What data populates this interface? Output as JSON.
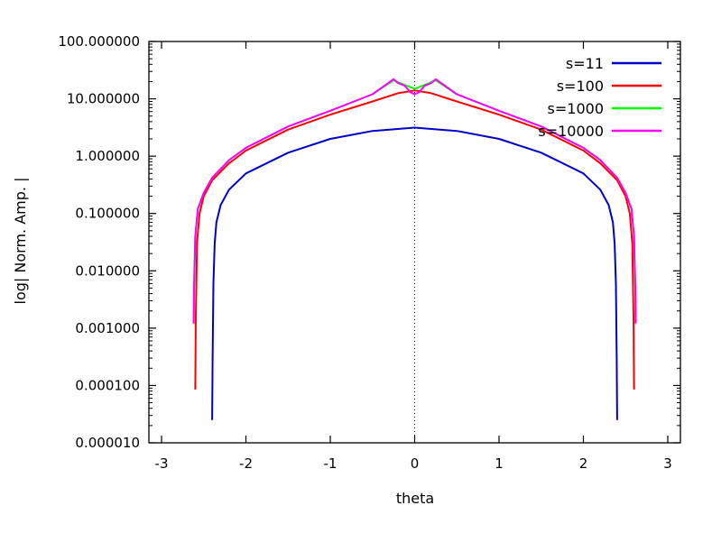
{
  "chart_data": {
    "type": "line",
    "title": "",
    "xlabel": "theta",
    "ylabel": "log| Norm. Amp. |",
    "xlim": [
      -3.15,
      3.15
    ],
    "ylim": [
      1e-05,
      100
    ],
    "yscale": "log",
    "x_ticks": [
      "-3",
      "-2",
      "-1",
      "0",
      "1",
      "2",
      "3"
    ],
    "y_ticks": [
      "0.000010",
      "0.000100",
      "0.001000",
      "0.010000",
      "0.100000",
      "1.000000",
      "10.000000",
      "100.000000"
    ],
    "zero_line": {
      "x": 0,
      "style": "dotted"
    },
    "grid": false,
    "legend_position": "top-right",
    "series": [
      {
        "name": "s=11",
        "color": "#0000cc",
        "x": [
          -2.4,
          -2.395,
          -2.385,
          -2.37,
          -2.35,
          -2.3,
          -2.2,
          -2.0,
          -1.5,
          -1.0,
          -0.5,
          0.0,
          0.5,
          1.0,
          1.5,
          2.0,
          2.2,
          2.3,
          2.35,
          2.37,
          2.385,
          2.395,
          2.4
        ],
        "y": [
          2.5e-05,
          0.0003,
          0.006,
          0.03,
          0.07,
          0.14,
          0.26,
          0.5,
          1.15,
          2.0,
          2.75,
          3.15,
          2.75,
          2.0,
          1.15,
          0.5,
          0.26,
          0.14,
          0.07,
          0.03,
          0.006,
          0.0003,
          2.5e-05
        ]
      },
      {
        "name": "s=100",
        "color": "#ff0000",
        "x": [
          -2.6,
          -2.595,
          -2.58,
          -2.55,
          -2.5,
          -2.4,
          -2.2,
          -2.0,
          -1.5,
          -1.0,
          -0.5,
          -0.2,
          0.0,
          0.2,
          0.5,
          1.0,
          1.5,
          2.0,
          2.2,
          2.4,
          2.5,
          2.55,
          2.58,
          2.595,
          2.6
        ],
        "y": [
          8.5e-05,
          0.0012,
          0.03,
          0.1,
          0.2,
          0.38,
          0.75,
          1.25,
          2.9,
          5.3,
          9.0,
          12.5,
          14.0,
          12.5,
          9.0,
          5.3,
          2.9,
          1.25,
          0.75,
          0.38,
          0.2,
          0.1,
          0.03,
          0.0012,
          8.5e-05
        ]
      },
      {
        "name": "s=1000",
        "color": "#00ff00",
        "x": [
          -2.62,
          -2.615,
          -2.6,
          -2.57,
          -2.5,
          -2.4,
          -2.2,
          -2.0,
          -1.5,
          -1.0,
          -0.5,
          -0.25,
          -0.12,
          0.0,
          0.12,
          0.25,
          0.5,
          1.0,
          1.5,
          2.0,
          2.2,
          2.4,
          2.5,
          2.57,
          2.6,
          2.615,
          2.62
        ],
        "y": [
          0.0012,
          0.005,
          0.04,
          0.12,
          0.23,
          0.42,
          0.85,
          1.4,
          3.3,
          6.2,
          12.0,
          21.0,
          17.5,
          15.0,
          17.5,
          21.0,
          12.0,
          6.2,
          3.3,
          1.4,
          0.85,
          0.42,
          0.23,
          0.12,
          0.04,
          0.005,
          0.0012
        ]
      },
      {
        "name": "s=10000",
        "color": "#ff00ff",
        "x": [
          -2.62,
          -2.615,
          -2.6,
          -2.57,
          -2.5,
          -2.4,
          -2.2,
          -2.0,
          -1.5,
          -1.0,
          -0.5,
          -0.25,
          -0.2,
          -0.12,
          -0.05,
          0.0,
          0.05,
          0.12,
          0.2,
          0.25,
          0.5,
          1.0,
          1.5,
          2.0,
          2.2,
          2.4,
          2.5,
          2.57,
          2.6,
          2.615,
          2.62
        ],
        "y": [
          0.0012,
          0.005,
          0.04,
          0.12,
          0.23,
          0.42,
          0.85,
          1.4,
          3.3,
          6.2,
          12.0,
          22.0,
          19.0,
          17.0,
          13.0,
          12.0,
          13.0,
          17.0,
          19.0,
          22.0,
          12.0,
          6.2,
          3.3,
          1.4,
          0.85,
          0.42,
          0.23,
          0.12,
          0.04,
          0.005,
          0.0012
        ]
      }
    ]
  }
}
